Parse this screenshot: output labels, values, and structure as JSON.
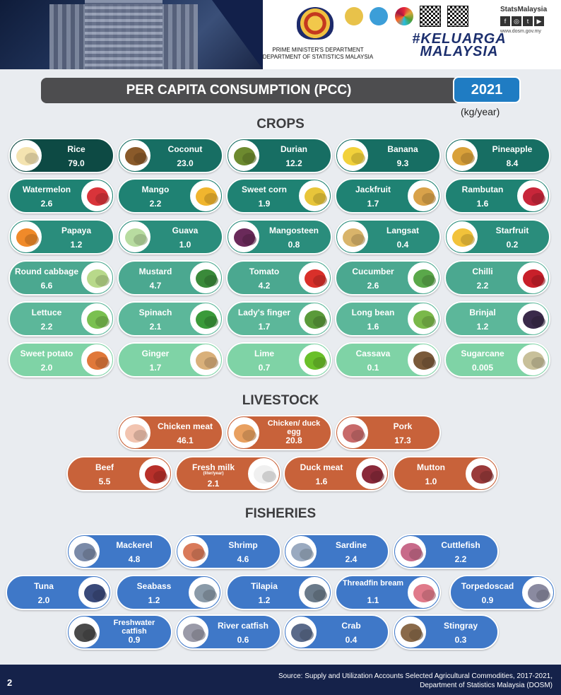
{
  "header": {
    "dept_line1": "PRIME MINISTER'S DEPARTMENT",
    "dept_line2": "DEPARTMENT OF STATISTICS MALAYSIA",
    "stats_brand": "StatsMalaysia",
    "stats_url": "www.dosm.gov.my",
    "campaign": "#KELUARGA MALAYSIA"
  },
  "title": "PER CAPITA CONSUMPTION (PCC)",
  "year": "2021",
  "unit": "(kg/year)",
  "sections": {
    "crops": "CROPS",
    "livestock": "LIVESTOCK",
    "fisheries": "FISHERIES"
  },
  "crops": [
    {
      "name": "Rice",
      "value": "79.0",
      "color": "#0d4a44"
    },
    {
      "name": "Coconut",
      "value": "23.0",
      "color": "#176e63"
    },
    {
      "name": "Durian",
      "value": "12.2",
      "color": "#176e63"
    },
    {
      "name": "Banana",
      "value": "9.3",
      "color": "#176e63"
    },
    {
      "name": "Pineapple",
      "value": "8.4",
      "color": "#176e63"
    },
    {
      "name": "Watermelon",
      "value": "2.6",
      "color": "#1f8273"
    },
    {
      "name": "Mango",
      "value": "2.2",
      "color": "#1f8273"
    },
    {
      "name": "Sweet corn",
      "value": "1.9",
      "color": "#1f8273"
    },
    {
      "name": "Jackfruit",
      "value": "1.7",
      "color": "#1f8273"
    },
    {
      "name": "Rambutan",
      "value": "1.6",
      "color": "#1f8273"
    },
    {
      "name": "Papaya",
      "value": "1.2",
      "color": "#2a8d7c"
    },
    {
      "name": "Guava",
      "value": "1.0",
      "color": "#2a8d7c"
    },
    {
      "name": "Mangosteen",
      "value": "0.8",
      "color": "#2a8d7c"
    },
    {
      "name": "Langsat",
      "value": "0.4",
      "color": "#2a8d7c"
    },
    {
      "name": "Starfruit",
      "value": "0.2",
      "color": "#2a8d7c"
    },
    {
      "name": "Round cabbage",
      "value": "6.6",
      "color": "#4ba890"
    },
    {
      "name": "Mustard",
      "value": "4.7",
      "color": "#4ba890"
    },
    {
      "name": "Tomato",
      "value": "4.2",
      "color": "#4ba890"
    },
    {
      "name": "Cucumber",
      "value": "2.6",
      "color": "#4ba890"
    },
    {
      "name": "Chilli",
      "value": "2.2",
      "color": "#4ba890"
    },
    {
      "name": "Lettuce",
      "value": "2.2",
      "color": "#5cb79a"
    },
    {
      "name": "Spinach",
      "value": "2.1",
      "color": "#5cb79a"
    },
    {
      "name": "Lady's finger",
      "value": "1.7",
      "color": "#5cb79a"
    },
    {
      "name": "Long bean",
      "value": "1.6",
      "color": "#5cb79a"
    },
    {
      "name": "Brinjal",
      "value": "1.2",
      "color": "#5cb79a"
    },
    {
      "name": "Sweet potato",
      "value": "2.0",
      "color": "#7fd3a6"
    },
    {
      "name": "Ginger",
      "value": "1.7",
      "color": "#7fd3a6"
    },
    {
      "name": "Lime",
      "value": "0.7",
      "color": "#7fd3a6"
    },
    {
      "name": "Cassava",
      "value": "0.1",
      "color": "#7fd3a6"
    },
    {
      "name": "Sugarcane",
      "value": "0.005",
      "color": "#7fd3a6"
    }
  ],
  "livestock": [
    {
      "name": "Chicken meat",
      "value": "46.1"
    },
    {
      "name": "Chicken/ duck egg",
      "value": "20.8"
    },
    {
      "name": "Pork",
      "value": "17.3"
    },
    {
      "name": "Beef",
      "value": "5.5"
    },
    {
      "name": "Fresh milk",
      "sub": "(liter/year)",
      "value": "2.1"
    },
    {
      "name": "Duck meat",
      "value": "1.6"
    },
    {
      "name": "Mutton",
      "value": "1.0"
    }
  ],
  "fisheries": [
    {
      "name": "Mackerel",
      "value": "4.8"
    },
    {
      "name": "Shrimp",
      "value": "4.6"
    },
    {
      "name": "Sardine",
      "value": "2.4"
    },
    {
      "name": "Cuttlefish",
      "value": "2.2"
    },
    {
      "name": "Tuna",
      "value": "2.0"
    },
    {
      "name": "Seabass",
      "value": "1.2"
    },
    {
      "name": "Tilapia",
      "value": "1.2"
    },
    {
      "name": "Threadfin bream",
      "value": "1.1"
    },
    {
      "name": "Torpedoscad",
      "value": "0.9"
    },
    {
      "name": "Freshwater catfish",
      "value": "0.9"
    },
    {
      "name": "River catfish",
      "value": "0.6"
    },
    {
      "name": "Crab",
      "value": "0.4"
    },
    {
      "name": "Stingray",
      "value": "0.3"
    }
  ],
  "colors": {
    "livestock": "#c8623a",
    "fisheries": "#3f78c8",
    "title_bar": "#4d4d4f",
    "year_box": "#1f7cc3",
    "footer": "#15224a"
  },
  "footer": {
    "page": "2",
    "source_line1": "Source: Supply and Utilization Accounts Selected Agricultural Commodities, 2017-2021,",
    "source_line2": "Department of Statistics Malaysia (DOSM)"
  }
}
